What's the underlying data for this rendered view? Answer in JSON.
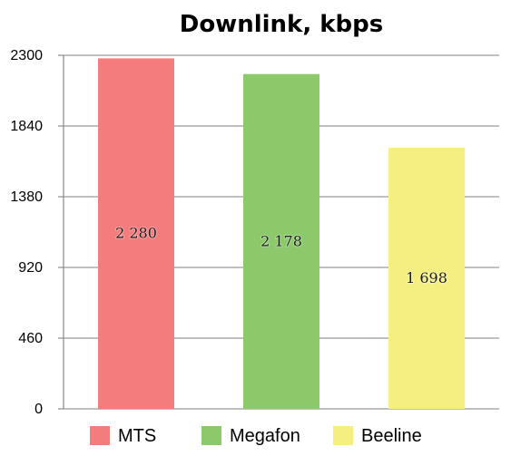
{
  "chart_data": {
    "type": "bar",
    "title": "Downlink, kbps",
    "categories": [
      "MTS",
      "Megafon",
      "Beeline"
    ],
    "values": [
      2280,
      2178,
      1698
    ],
    "data_labels": [
      "2 280",
      "2 178",
      "1 698"
    ],
    "colors": [
      "#F47C7C",
      "#8CC96B",
      "#F5EE80"
    ],
    "ylim": [
      0,
      2300
    ],
    "yticks": [
      0,
      460,
      920,
      1380,
      1840,
      2300
    ],
    "ytick_labels": [
      "0",
      "460",
      "920",
      "1380",
      "1840",
      "2300"
    ],
    "grid": true,
    "legend_position": "bottom"
  }
}
